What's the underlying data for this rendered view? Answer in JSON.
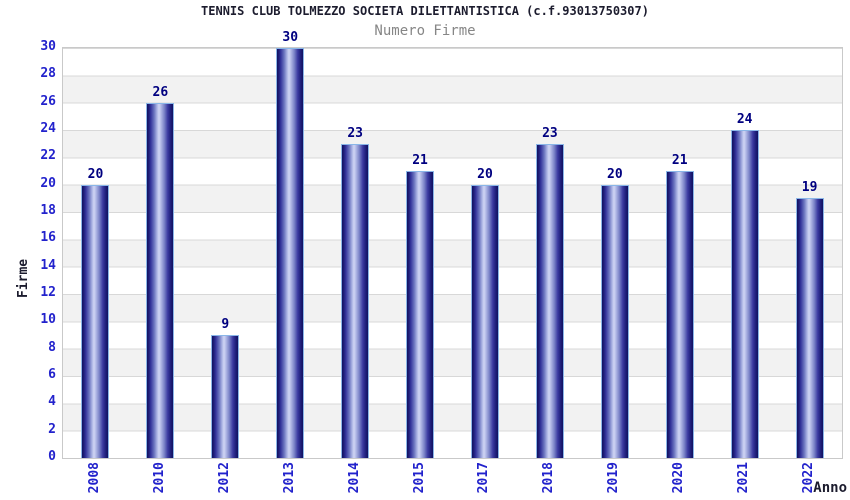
{
  "header": {
    "title": "TENNIS CLUB TOLMEZZO SOCIETA DILETTANTISTICA (c.f.93013750307)",
    "subtitle": "Numero Firme"
  },
  "chart_data": {
    "type": "bar",
    "title": "TENNIS CLUB TOLMEZZO SOCIETA DILETTANTISTICA (c.f.93013750307)",
    "subtitle": "Numero Firme",
    "xlabel": "Anno",
    "ylabel": "Firme",
    "categories": [
      "2008",
      "2010",
      "2012",
      "2013",
      "2014",
      "2015",
      "2017",
      "2018",
      "2019",
      "2020",
      "2021",
      "2022"
    ],
    "values": [
      20,
      26,
      9,
      30,
      23,
      21,
      20,
      23,
      20,
      21,
      24,
      19
    ],
    "ylim": [
      0,
      30
    ],
    "ytick_step": 2,
    "grid": "horizontal gridlines every 2 units with alternating white/gray bands",
    "legend": "none",
    "colors": {
      "bar_edge_dark": "#12125f",
      "bar_highlight": "#d0d5f3",
      "bar_outline": "#8ab6e8",
      "axis_tick_label": "#2222cc",
      "bar_value_label": "#000080",
      "title_text": "#1c1c2e",
      "subtitle_text": "#868686",
      "band_gray": "#f2f2f2",
      "gridline": "#d8d8d8",
      "plot_border": "#c9c9c9",
      "background": "#ffffff"
    }
  }
}
